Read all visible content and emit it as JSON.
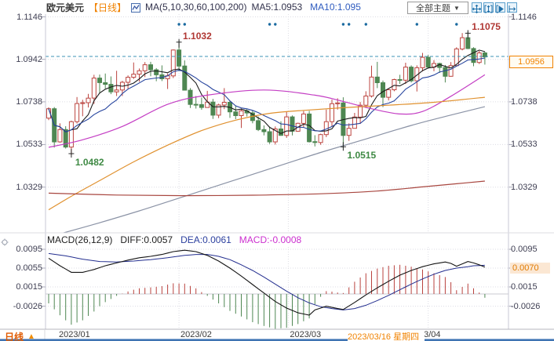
{
  "header": {
    "title": "欧元美元",
    "period": "【日线】",
    "ma_settings": "MA(5,10,30,60,100,200)",
    "ma5": "MA5:1.0953",
    "ma10": "MA10:1.095",
    "theme_dropdown": "全部主题",
    "dropdown_caret": "▼",
    "tool_icons": [
      "crosshair-move",
      "axis-range",
      "pan-mode",
      "shift-right"
    ]
  },
  "price_axis": {
    "tick_labels": [
      "1.1146",
      "1.0942",
      "1.0738",
      "1.0533",
      "1.0329"
    ],
    "current_label": "1.0956"
  },
  "macd_axis": {
    "tick_labels": [
      "0.0095",
      "0.0055",
      "0.0015",
      "-0.0026"
    ],
    "current_label": "0.0070"
  },
  "macd_header": {
    "name": "MACD(26,12,9)",
    "diff": "DIFF:0.0057",
    "dea": "DEA:0.0061",
    "macd": "MACD:-0.0008"
  },
  "bottom": {
    "period": "日线",
    "arrow": "▲",
    "crosshair_date": "2023/03/16 星期四",
    "months": [
      {
        "label": "2023/01",
        "index": 1.8,
        "grid": false,
        "shift": 0
      },
      {
        "label": "2023/02",
        "index": 23.0,
        "grid": true,
        "shift": 2
      },
      {
        "label": "2023/03",
        "index": 42.3,
        "grid": true,
        "shift": 2
      },
      {
        "label": "2023/04",
        "index": 67.0,
        "grid": true,
        "shift": -24
      }
    ]
  },
  "colors": {
    "up": "#bc4540",
    "down": "#4e8752",
    "ma5": "#1c1c1c",
    "ma10": "#27459e",
    "ma30": "#c43ec4",
    "ma60": "#e0912f",
    "ma100": "#8b93a6",
    "ma200": "#a8463f",
    "diff_line": "#141414",
    "dea_line": "#232e8f",
    "hist_up": "#b9423e",
    "hist_down": "#4e8752",
    "last_price_line": "#3d93b5",
    "grid": "#dcdce4",
    "border": "#c8c8d4",
    "event_dot": "#1a6aa0",
    "annotation_high": "#b03733",
    "annotation_low": "#3f8a44",
    "bottom_bar": "#3f74b3",
    "cross_marker": "#2a2a2a"
  },
  "chart_data": {
    "type": "candlestick",
    "symbol": "欧元美元",
    "interval": "日线",
    "price_axis_ticks": [
      1.1146,
      1.0942,
      1.0738,
      1.0533,
      1.0329
    ],
    "last_price": 1.0956,
    "candles": [
      [
        1.066,
        1.0712,
        1.065,
        1.0705
      ],
      [
        1.0705,
        1.0713,
        1.0519,
        1.0546
      ],
      [
        1.0546,
        1.0635,
        1.0542,
        1.0605
      ],
      [
        1.0605,
        1.0621,
        1.0514,
        1.0521
      ],
      [
        1.0521,
        1.0648,
        1.0482,
        1.0643
      ],
      [
        1.0643,
        1.0761,
        1.0634,
        1.073
      ],
      [
        1.073,
        1.0748,
        1.0669,
        1.0734
      ],
      [
        1.0734,
        1.0776,
        1.0711,
        1.0756
      ],
      [
        1.0756,
        1.0868,
        1.0728,
        1.0852
      ],
      [
        1.0852,
        1.0869,
        1.0778,
        1.083
      ],
      [
        1.083,
        1.0874,
        1.0802,
        1.0822
      ],
      [
        1.0822,
        1.086,
        1.0775,
        1.0786
      ],
      [
        1.0786,
        1.0887,
        1.0766,
        1.0795
      ],
      [
        1.0795,
        1.0839,
        1.0766,
        1.0832
      ],
      [
        1.0832,
        1.0865,
        1.0801,
        1.0856
      ],
      [
        1.0856,
        1.0927,
        1.0848,
        1.0871
      ],
      [
        1.0871,
        1.0898,
        1.0835,
        1.0887
      ],
      [
        1.0887,
        1.0929,
        1.0857,
        1.0916
      ],
      [
        1.0916,
        1.093,
        1.0861,
        1.0892
      ],
      [
        1.0892,
        1.09,
        1.0837,
        1.0868
      ],
      [
        1.0868,
        1.0913,
        1.0838,
        1.0849
      ],
      [
        1.0849,
        1.0874,
        1.08,
        1.0863
      ],
      [
        1.0863,
        1.0989,
        1.0852,
        1.0987
      ],
      [
        1.0987,
        1.1032,
        1.0885,
        1.091
      ],
      [
        1.091,
        1.0937,
        1.0794,
        1.0794
      ],
      [
        1.0794,
        1.0804,
        1.0709,
        1.0726
      ],
      [
        1.0726,
        1.0766,
        1.0706,
        1.0725
      ],
      [
        1.0725,
        1.0759,
        1.07,
        1.0711
      ],
      [
        1.0711,
        1.0791,
        1.071,
        1.0737
      ],
      [
        1.0737,
        1.0752,
        1.0656,
        1.0674
      ],
      [
        1.0674,
        1.0729,
        1.066,
        1.0723
      ],
      [
        1.0723,
        1.0804,
        1.0703,
        1.0736
      ],
      [
        1.0736,
        1.0744,
        1.0661,
        1.069
      ],
      [
        1.069,
        1.0721,
        1.0655,
        1.0672
      ],
      [
        1.0672,
        1.0706,
        1.0613,
        1.0695
      ],
      [
        1.0695,
        1.0705,
        1.0668,
        1.0685
      ],
      [
        1.0685,
        1.0698,
        1.0635,
        1.0648
      ],
      [
        1.0648,
        1.0668,
        1.0598,
        1.0605
      ],
      [
        1.0605,
        1.0625,
        1.0577,
        1.0595
      ],
      [
        1.0595,
        1.0619,
        1.0536,
        1.0546
      ],
      [
        1.0546,
        1.062,
        1.0533,
        1.0608
      ],
      [
        1.0608,
        1.0645,
        1.0575,
        1.0577
      ],
      [
        1.0577,
        1.0691,
        1.0565,
        1.0666
      ],
      [
        1.0666,
        1.0673,
        1.0577,
        1.0597
      ],
      [
        1.0597,
        1.0638,
        1.0595,
        1.0635
      ],
      [
        1.0635,
        1.0694,
        1.0616,
        1.068
      ],
      [
        1.068,
        1.0695,
        1.0543,
        1.0547
      ],
      [
        1.0547,
        1.0578,
        1.0524,
        1.0543
      ],
      [
        1.0543,
        1.0585,
        1.0532,
        1.0581
      ],
      [
        1.0581,
        1.0701,
        1.0569,
        1.0643
      ],
      [
        1.0643,
        1.0749,
        1.0621,
        1.0729
      ],
      [
        1.0729,
        1.0755,
        1.0701,
        1.0733
      ],
      [
        1.0733,
        1.076,
        1.0515,
        1.0577
      ],
      [
        1.0577,
        1.0635,
        1.0551,
        1.0611
      ],
      [
        1.0611,
        1.0685,
        1.0611,
        1.0665
      ],
      [
        1.0665,
        1.0737,
        1.0632,
        1.0722
      ],
      [
        1.0722,
        1.0789,
        1.0709,
        1.0766
      ],
      [
        1.0766,
        1.0912,
        1.0759,
        1.0857
      ],
      [
        1.0857,
        1.093,
        1.0804,
        1.083
      ],
      [
        1.083,
        1.084,
        1.0713,
        1.076
      ],
      [
        1.076,
        1.08,
        1.0745,
        1.0796
      ],
      [
        1.0796,
        1.0849,
        1.0789,
        1.0845
      ],
      [
        1.0845,
        1.0868,
        1.0824,
        1.0842
      ],
      [
        1.0842,
        1.0926,
        1.0824,
        1.0905
      ],
      [
        1.0905,
        1.0913,
        1.0831,
        1.0839
      ],
      [
        1.0839,
        1.0913,
        1.0788,
        1.0902
      ],
      [
        1.0902,
        1.0973,
        1.0884,
        1.0952
      ],
      [
        1.0952,
        1.0963,
        1.0899,
        1.0905
      ],
      [
        1.0905,
        1.0938,
        1.0885,
        1.0922
      ],
      [
        1.0922,
        1.0926,
        1.0877,
        1.0903
      ],
      [
        1.0903,
        1.0915,
        1.0831,
        1.0861
      ],
      [
        1.0861,
        1.0929,
        1.0859,
        1.0912
      ],
      [
        1.0912,
        1.1,
        1.0911,
        1.0992
      ],
      [
        1.0992,
        1.1068,
        1.0985,
        1.1046
      ],
      [
        1.1046,
        1.1075,
        1.0991,
        1.0994
      ],
      [
        1.0994,
        1.1,
        1.0909,
        1.0927
      ],
      [
        1.0927,
        1.0983,
        1.092,
        1.0973
      ],
      [
        1.0973,
        1.0979,
        1.0917,
        1.0954
      ]
    ],
    "event_dot_indices": [
      23,
      24,
      39,
      40,
      52,
      53,
      56,
      65,
      72
    ],
    "annotations": [
      {
        "label": "1.1032",
        "price": 1.1032,
        "index": 23,
        "kind": "high"
      },
      {
        "label": "1.1075",
        "price": 1.1075,
        "index": 74,
        "kind": "high"
      },
      {
        "label": "1.0482",
        "price": 1.0482,
        "index": 4,
        "kind": "low"
      },
      {
        "label": "1.0515",
        "price": 1.0515,
        "index": 52,
        "kind": "low"
      }
    ],
    "ma_overlays": [
      {
        "name": "MA5",
        "window": 5,
        "color_key": "ma5"
      },
      {
        "name": "MA10",
        "window": 10,
        "color_key": "ma10"
      },
      {
        "name": "MA30",
        "color_key": "ma30",
        "points": [
          [
            0,
            1.052
          ],
          [
            6,
            1.0556
          ],
          [
            13,
            1.062
          ],
          [
            21,
            1.0726
          ],
          [
            28,
            1.077
          ],
          [
            38,
            1.0795
          ],
          [
            47,
            1.077
          ],
          [
            52,
            1.074
          ],
          [
            57,
            1.0705
          ],
          [
            62,
            1.068
          ],
          [
            66,
            1.0692
          ],
          [
            71,
            1.0765
          ],
          [
            77,
            1.0868
          ]
        ]
      },
      {
        "name": "MA60",
        "color_key": "ma60",
        "points": [
          [
            0,
            1.022
          ],
          [
            4,
            1.0285
          ],
          [
            9,
            1.036
          ],
          [
            15,
            1.045
          ],
          [
            21,
            1.053
          ],
          [
            27,
            1.06
          ],
          [
            33,
            1.065
          ],
          [
            39,
            1.0683
          ],
          [
            45,
            1.0697
          ],
          [
            52,
            1.071
          ],
          [
            60,
            1.0722
          ],
          [
            68,
            1.0736
          ],
          [
            77,
            1.076
          ]
        ]
      },
      {
        "name": "MA100",
        "color_key": "ma100",
        "points": [
          [
            0,
            1.009
          ],
          [
            8,
            1.015
          ],
          [
            16,
            1.0215
          ],
          [
            24,
            1.0285
          ],
          [
            32,
            1.0355
          ],
          [
            40,
            1.0425
          ],
          [
            48,
            1.0495
          ],
          [
            56,
            1.056
          ],
          [
            64,
            1.0625
          ],
          [
            70,
            1.0668
          ],
          [
            77,
            1.0715
          ]
        ]
      },
      {
        "name": "MA200",
        "color_key": "ma200",
        "points": [
          [
            0,
            1.03
          ],
          [
            12,
            1.0291
          ],
          [
            24,
            1.0288
          ],
          [
            36,
            1.029
          ],
          [
            48,
            1.0297
          ],
          [
            58,
            1.031
          ],
          [
            66,
            1.033
          ],
          [
            72,
            1.0345
          ],
          [
            77,
            1.0358
          ]
        ]
      }
    ],
    "macd": {
      "params": "26,12,9",
      "axis_ticks": [
        0.0095,
        0.0055,
        0.0015,
        -0.0026
      ],
      "hist_scale": 2,
      "diff_points": [
        [
          0,
          0.0076
        ],
        [
          2,
          0.006
        ],
        [
          4,
          0.0046
        ],
        [
          6,
          0.0046
        ],
        [
          8,
          0.0052
        ],
        [
          10,
          0.006
        ],
        [
          12,
          0.0066
        ],
        [
          14,
          0.0072
        ],
        [
          16,
          0.0077
        ],
        [
          18,
          0.008
        ],
        [
          20,
          0.0084
        ],
        [
          22,
          0.009
        ],
        [
          24,
          0.0093
        ],
        [
          26,
          0.009
        ],
        [
          28,
          0.0082
        ],
        [
          30,
          0.007
        ],
        [
          32,
          0.0055
        ],
        [
          34,
          0.0038
        ],
        [
          36,
          0.002
        ],
        [
          38,
          0.0002
        ],
        [
          40,
          -0.0016
        ],
        [
          42,
          -0.003
        ],
        [
          44,
          -0.004
        ],
        [
          46,
          -0.0045
        ],
        [
          47,
          -0.0034
        ],
        [
          49,
          -0.0026
        ],
        [
          51,
          -0.0031
        ],
        [
          52,
          -0.0033
        ],
        [
          54,
          -0.0018
        ],
        [
          56,
          -0.0002
        ],
        [
          58,
          0.0013
        ],
        [
          60,
          0.0027
        ],
        [
          62,
          0.004
        ],
        [
          64,
          0.005
        ],
        [
          66,
          0.0058
        ],
        [
          68,
          0.0064
        ],
        [
          70,
          0.0068
        ],
        [
          71,
          0.0065
        ],
        [
          72,
          0.0059
        ],
        [
          73,
          0.0064
        ],
        [
          74,
          0.0069
        ],
        [
          75,
          0.0066
        ],
        [
          76,
          0.0062
        ],
        [
          77,
          0.0057
        ]
      ],
      "dea_points": [
        [
          0,
          0.0086
        ],
        [
          3,
          0.0081
        ],
        [
          6,
          0.0074
        ],
        [
          9,
          0.0069
        ],
        [
          12,
          0.0068
        ],
        [
          15,
          0.007
        ],
        [
          18,
          0.0073
        ],
        [
          21,
          0.0077
        ],
        [
          24,
          0.0082
        ],
        [
          26,
          0.0084
        ],
        [
          28,
          0.0084
        ],
        [
          30,
          0.008
        ],
        [
          32,
          0.0073
        ],
        [
          34,
          0.0062
        ],
        [
          36,
          0.005
        ],
        [
          38,
          0.0036
        ],
        [
          40,
          0.0021
        ],
        [
          42,
          0.0006
        ],
        [
          44,
          -0.0008
        ],
        [
          46,
          -0.0019
        ],
        [
          48,
          -0.0027
        ],
        [
          50,
          -0.0031
        ],
        [
          52,
          -0.0034
        ],
        [
          54,
          -0.0031
        ],
        [
          56,
          -0.0024
        ],
        [
          58,
          -0.0014
        ],
        [
          60,
          -0.0003
        ],
        [
          62,
          0.0009
        ],
        [
          64,
          0.0021
        ],
        [
          66,
          0.0032
        ],
        [
          68,
          0.0042
        ],
        [
          70,
          0.005
        ],
        [
          72,
          0.0055
        ],
        [
          74,
          0.0058
        ],
        [
          75,
          0.006
        ],
        [
          77,
          0.0061
        ]
      ]
    }
  }
}
